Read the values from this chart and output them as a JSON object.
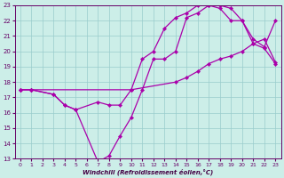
{
  "xlabel": "Windchill (Refroidissement éolien,°C)",
  "xlim": [
    -0.5,
    23.5
  ],
  "ylim": [
    13,
    23
  ],
  "yticks": [
    13,
    14,
    15,
    16,
    17,
    18,
    19,
    20,
    21,
    22,
    23
  ],
  "xticks": [
    0,
    1,
    2,
    3,
    4,
    5,
    6,
    7,
    8,
    9,
    10,
    11,
    12,
    13,
    14,
    15,
    16,
    17,
    18,
    19,
    20,
    21,
    22,
    23
  ],
  "bg_color": "#cceee8",
  "grid_color": "#99cccc",
  "line_color": "#aa00aa",
  "lines": [
    {
      "x": [
        0,
        1,
        3,
        4,
        5,
        7,
        8,
        9,
        10,
        11,
        12,
        13,
        14,
        15,
        16,
        17,
        18,
        19,
        20,
        21,
        22,
        23
      ],
      "y": [
        17.5,
        17.5,
        17.2,
        16.5,
        16.2,
        12.8,
        13.2,
        14.5,
        15.7,
        17.5,
        19.5,
        19.5,
        20.0,
        22.2,
        22.5,
        23.0,
        23.0,
        22.8,
        22.0,
        20.5,
        20.2,
        19.2
      ]
    },
    {
      "x": [
        0,
        1,
        3,
        4,
        5,
        7,
        8,
        9,
        10,
        11,
        12,
        13,
        14,
        15,
        16,
        17,
        18,
        19,
        20,
        21,
        22,
        23
      ],
      "y": [
        17.5,
        17.5,
        17.2,
        16.5,
        16.2,
        16.7,
        16.5,
        16.5,
        17.5,
        19.5,
        20.0,
        21.5,
        22.2,
        22.5,
        23.0,
        23.0,
        22.8,
        22.0,
        22.0,
        20.8,
        20.3,
        22.0
      ]
    },
    {
      "x": [
        0,
        1,
        10,
        14,
        15,
        16,
        17,
        18,
        19,
        20,
        21,
        22,
        23
      ],
      "y": [
        17.5,
        17.5,
        17.5,
        18.0,
        18.3,
        18.7,
        19.2,
        19.5,
        19.7,
        20.0,
        20.5,
        20.8,
        19.3
      ]
    }
  ]
}
